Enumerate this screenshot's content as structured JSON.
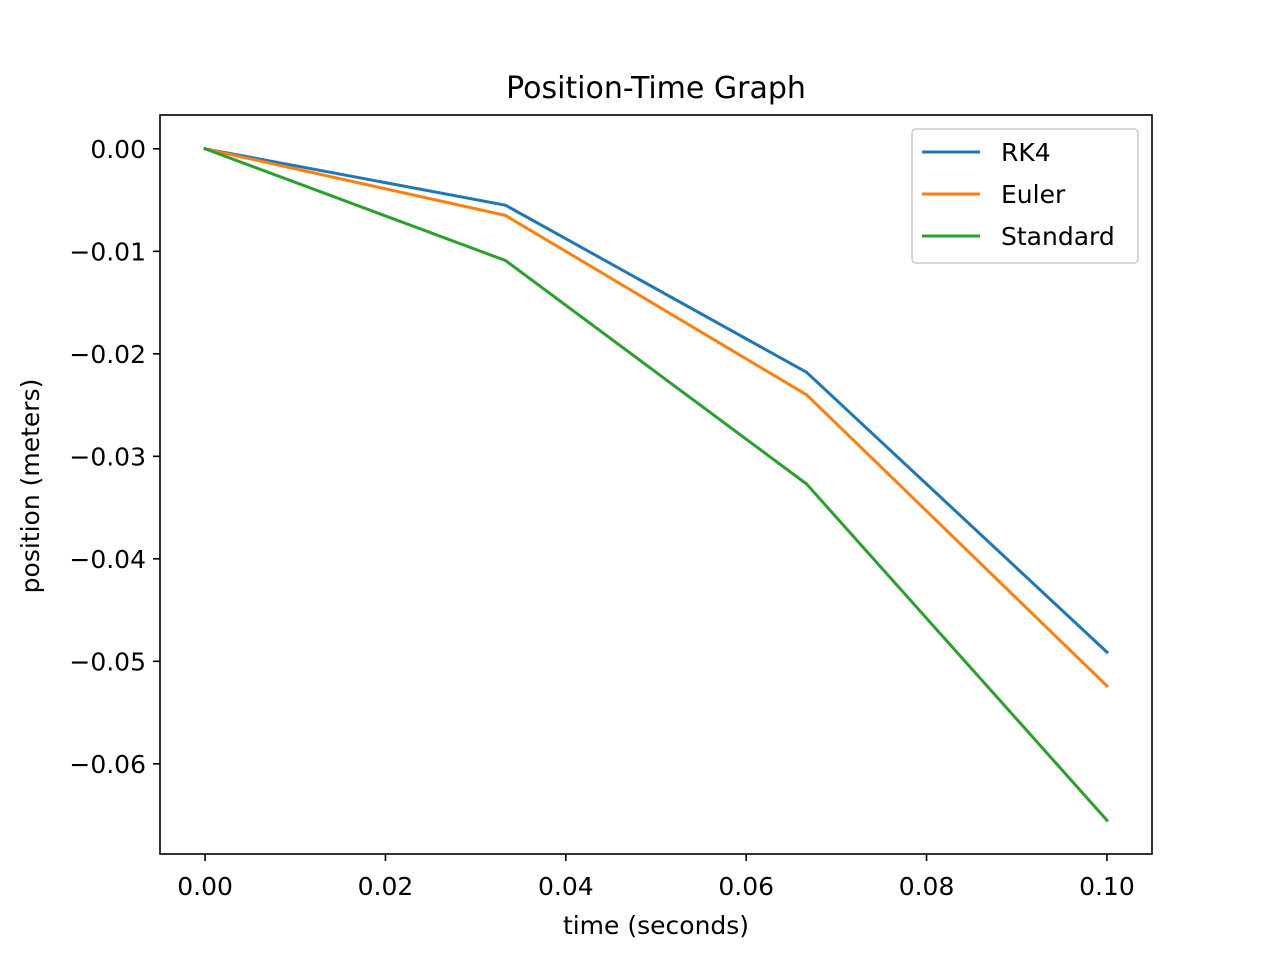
{
  "chart_data": {
    "type": "line",
    "title": "Position-Time Graph",
    "xlabel": "time (seconds)",
    "ylabel": "position (meters)",
    "xlim": [
      -0.005,
      0.105
    ],
    "ylim": [
      -0.0688,
      0.0033
    ],
    "xticks": [
      0.0,
      0.02,
      0.04,
      0.06,
      0.08,
      0.1
    ],
    "xtick_labels": [
      "0.00",
      "0.02",
      "0.04",
      "0.06",
      "0.08",
      "0.10"
    ],
    "yticks": [
      0.0,
      -0.01,
      -0.02,
      -0.03,
      -0.04,
      -0.05,
      -0.06
    ],
    "ytick_labels": [
      "0.00",
      "−0.01",
      "−0.02",
      "−0.03",
      "−0.04",
      "−0.05",
      "−0.06"
    ],
    "grid": false,
    "legend_position": "top-right",
    "x": [
      0.0,
      0.0333,
      0.0667,
      0.1
    ],
    "series": [
      {
        "name": "RK4",
        "color": "#1f77b4",
        "values": [
          0.0,
          -0.0055,
          -0.0218,
          -0.0491
        ]
      },
      {
        "name": "Euler",
        "color": "#ff7f0e",
        "values": [
          0.0,
          -0.0065,
          -0.024,
          -0.0524
        ]
      },
      {
        "name": "Standard",
        "color": "#2ca02c",
        "values": [
          0.0,
          -0.0109,
          -0.0327,
          -0.0655
        ]
      }
    ]
  }
}
